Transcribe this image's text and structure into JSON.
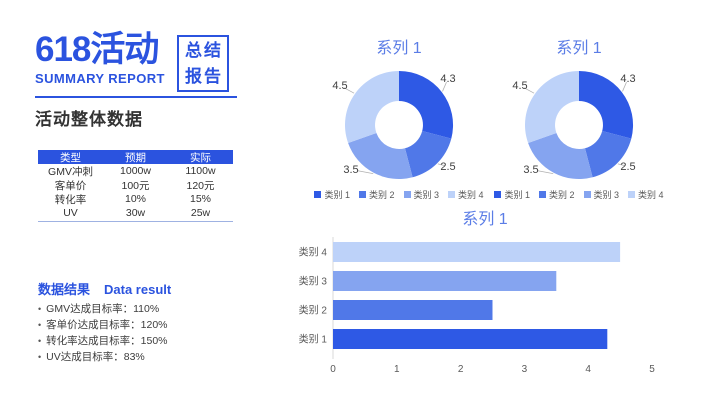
{
  "header": {
    "title": "618活动",
    "subtitle": "SUMMARY REPORT",
    "badge_line1": "总结",
    "badge_line2": "报告"
  },
  "section": {
    "heading": "活动整体数据"
  },
  "table": {
    "headers": [
      "类型",
      "预期",
      "实际"
    ],
    "rows": [
      [
        "GMV冲刺",
        "1000w",
        "1100w"
      ],
      [
        "客单价",
        "100元",
        "120元"
      ],
      [
        "转化率",
        "10%",
        "15%"
      ],
      [
        "UV",
        "30w",
        "25w"
      ]
    ]
  },
  "results": {
    "title_zh": "数据结果",
    "title_en": "Data result",
    "items": [
      "GMV达成目标率：110%",
      "客单价达成目标率：120%",
      "转化率达成目标率：150%",
      "UV达成目标率：83%"
    ]
  },
  "colors": {
    "brand": "#2b53df",
    "chart_title": "#5b7de6",
    "series": [
      "#2e59e5",
      "#5078e8",
      "#85a4f0",
      "#bdd2f9"
    ]
  },
  "chart_data": [
    {
      "type": "pie",
      "subtype": "donut",
      "title": "系列 1",
      "categories": [
        "类别 1",
        "类别 2",
        "类别 3",
        "类别 4"
      ],
      "values": [
        4.3,
        2.5,
        3.5,
        4.5
      ],
      "colors": [
        "#2e59e5",
        "#5078e8",
        "#85a4f0",
        "#bdd2f9"
      ],
      "data_labels": true,
      "legend_position": "bottom"
    },
    {
      "type": "pie",
      "subtype": "donut",
      "title": "系列 1",
      "categories": [
        "类别 1",
        "类别 2",
        "类别 3",
        "类别 4"
      ],
      "values": [
        4.3,
        2.5,
        3.5,
        4.5
      ],
      "colors": [
        "#2e59e5",
        "#5078e8",
        "#85a4f0",
        "#bdd2f9"
      ],
      "data_labels": true,
      "legend_position": "bottom"
    },
    {
      "type": "bar",
      "orientation": "horizontal",
      "title": "系列 1",
      "categories": [
        "类别 1",
        "类别 2",
        "类别 3",
        "类别 4"
      ],
      "values": [
        4.3,
        2.5,
        3.5,
        4.5
      ],
      "colors": [
        "#2e59e5",
        "#5078e8",
        "#85a4f0",
        "#bdd2f9"
      ],
      "xlim": [
        0,
        5
      ],
      "xticks": [
        0,
        1,
        2,
        3,
        4,
        5
      ],
      "grid": false,
      "legend_position": "none"
    }
  ]
}
